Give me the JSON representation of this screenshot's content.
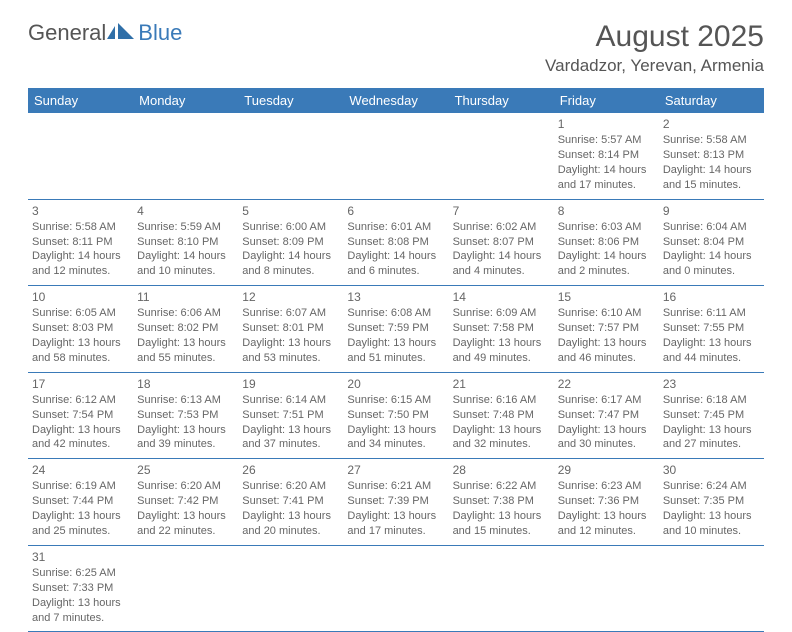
{
  "logo": {
    "general": "General",
    "blue": "Blue"
  },
  "title": "August 2025",
  "location": "Vardadzor, Yerevan, Armenia",
  "colors": {
    "header_bg": "#3a7ab8",
    "header_fg": "#ffffff",
    "text": "#555555",
    "cell_text": "#666666",
    "row_border": "#3a7ab8",
    "background": "#ffffff"
  },
  "dayHeaders": [
    "Sunday",
    "Monday",
    "Tuesday",
    "Wednesday",
    "Thursday",
    "Friday",
    "Saturday"
  ],
  "weeks": [
    [
      null,
      null,
      null,
      null,
      null,
      {
        "n": "1",
        "sr": "5:57 AM",
        "ss": "8:14 PM",
        "dl": "14 hours and 17 minutes."
      },
      {
        "n": "2",
        "sr": "5:58 AM",
        "ss": "8:13 PM",
        "dl": "14 hours and 15 minutes."
      }
    ],
    [
      {
        "n": "3",
        "sr": "5:58 AM",
        "ss": "8:11 PM",
        "dl": "14 hours and 12 minutes."
      },
      {
        "n": "4",
        "sr": "5:59 AM",
        "ss": "8:10 PM",
        "dl": "14 hours and 10 minutes."
      },
      {
        "n": "5",
        "sr": "6:00 AM",
        "ss": "8:09 PM",
        "dl": "14 hours and 8 minutes."
      },
      {
        "n": "6",
        "sr": "6:01 AM",
        "ss": "8:08 PM",
        "dl": "14 hours and 6 minutes."
      },
      {
        "n": "7",
        "sr": "6:02 AM",
        "ss": "8:07 PM",
        "dl": "14 hours and 4 minutes."
      },
      {
        "n": "8",
        "sr": "6:03 AM",
        "ss": "8:06 PM",
        "dl": "14 hours and 2 minutes."
      },
      {
        "n": "9",
        "sr": "6:04 AM",
        "ss": "8:04 PM",
        "dl": "14 hours and 0 minutes."
      }
    ],
    [
      {
        "n": "10",
        "sr": "6:05 AM",
        "ss": "8:03 PM",
        "dl": "13 hours and 58 minutes."
      },
      {
        "n": "11",
        "sr": "6:06 AM",
        "ss": "8:02 PM",
        "dl": "13 hours and 55 minutes."
      },
      {
        "n": "12",
        "sr": "6:07 AM",
        "ss": "8:01 PM",
        "dl": "13 hours and 53 minutes."
      },
      {
        "n": "13",
        "sr": "6:08 AM",
        "ss": "7:59 PM",
        "dl": "13 hours and 51 minutes."
      },
      {
        "n": "14",
        "sr": "6:09 AM",
        "ss": "7:58 PM",
        "dl": "13 hours and 49 minutes."
      },
      {
        "n": "15",
        "sr": "6:10 AM",
        "ss": "7:57 PM",
        "dl": "13 hours and 46 minutes."
      },
      {
        "n": "16",
        "sr": "6:11 AM",
        "ss": "7:55 PM",
        "dl": "13 hours and 44 minutes."
      }
    ],
    [
      {
        "n": "17",
        "sr": "6:12 AM",
        "ss": "7:54 PM",
        "dl": "13 hours and 42 minutes."
      },
      {
        "n": "18",
        "sr": "6:13 AM",
        "ss": "7:53 PM",
        "dl": "13 hours and 39 minutes."
      },
      {
        "n": "19",
        "sr": "6:14 AM",
        "ss": "7:51 PM",
        "dl": "13 hours and 37 minutes."
      },
      {
        "n": "20",
        "sr": "6:15 AM",
        "ss": "7:50 PM",
        "dl": "13 hours and 34 minutes."
      },
      {
        "n": "21",
        "sr": "6:16 AM",
        "ss": "7:48 PM",
        "dl": "13 hours and 32 minutes."
      },
      {
        "n": "22",
        "sr": "6:17 AM",
        "ss": "7:47 PM",
        "dl": "13 hours and 30 minutes."
      },
      {
        "n": "23",
        "sr": "6:18 AM",
        "ss": "7:45 PM",
        "dl": "13 hours and 27 minutes."
      }
    ],
    [
      {
        "n": "24",
        "sr": "6:19 AM",
        "ss": "7:44 PM",
        "dl": "13 hours and 25 minutes."
      },
      {
        "n": "25",
        "sr": "6:20 AM",
        "ss": "7:42 PM",
        "dl": "13 hours and 22 minutes."
      },
      {
        "n": "26",
        "sr": "6:20 AM",
        "ss": "7:41 PM",
        "dl": "13 hours and 20 minutes."
      },
      {
        "n": "27",
        "sr": "6:21 AM",
        "ss": "7:39 PM",
        "dl": "13 hours and 17 minutes."
      },
      {
        "n": "28",
        "sr": "6:22 AM",
        "ss": "7:38 PM",
        "dl": "13 hours and 15 minutes."
      },
      {
        "n": "29",
        "sr": "6:23 AM",
        "ss": "7:36 PM",
        "dl": "13 hours and 12 minutes."
      },
      {
        "n": "30",
        "sr": "6:24 AM",
        "ss": "7:35 PM",
        "dl": "13 hours and 10 minutes."
      }
    ],
    [
      {
        "n": "31",
        "sr": "6:25 AM",
        "ss": "7:33 PM",
        "dl": "13 hours and 7 minutes."
      },
      null,
      null,
      null,
      null,
      null,
      null
    ]
  ],
  "labels": {
    "sunrise": "Sunrise:",
    "sunset": "Sunset:",
    "daylight": "Daylight:"
  }
}
